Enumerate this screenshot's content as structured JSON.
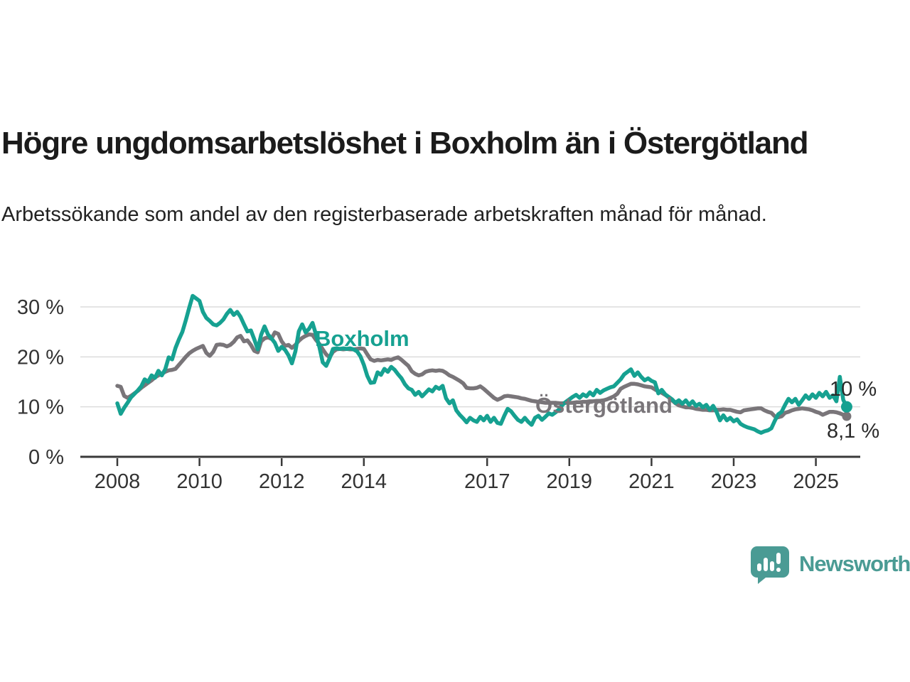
{
  "header": {
    "title": "Högre ungdomsarbetslöshet i Boxholm än i Östergötland",
    "subtitle": "Arbetssökande som andel av den registerbaserade arbetskraften månad för månad."
  },
  "chart_data": {
    "type": "line",
    "unit": "%",
    "x_start": "2008-01",
    "x_end": "2025-10",
    "x_ticks": [
      2008,
      2010,
      2012,
      2014,
      2017,
      2019,
      2021,
      2023,
      2025
    ],
    "y_axis": {
      "min": 0,
      "max": 33,
      "ticks": [
        {
          "value": 0,
          "label": "0 %"
        },
        {
          "value": 10,
          "label": "10 %"
        },
        {
          "value": 20,
          "label": "20 %"
        },
        {
          "value": 30,
          "label": "30 %"
        }
      ]
    },
    "grid": "horizontal",
    "legend_position": "inline-labels",
    "series": [
      {
        "name": "Boxholm",
        "color": "#16a191",
        "end_label": "10 %",
        "last_value": 10.0,
        "values": [
          10.7,
          8.6,
          9.8,
          10.8,
          11.9,
          12.6,
          13.3,
          14.1,
          15.5,
          15.0,
          16.3,
          15.8,
          17.2,
          16.3,
          17.5,
          19.9,
          19.5,
          21.8,
          23.5,
          25.0,
          27.3,
          29.8,
          32.2,
          31.7,
          31.2,
          29.0,
          27.8,
          27.2,
          26.5,
          26.3,
          26.8,
          27.5,
          28.6,
          29.4,
          28.4,
          29.0,
          28.0,
          26.5,
          25.1,
          25.3,
          23.5,
          21.5,
          24.4,
          26.1,
          24.5,
          23.7,
          22.8,
          21.2,
          22.0,
          21.4,
          20.3,
          18.7,
          21.1,
          25.1,
          26.5,
          24.9,
          25.6,
          26.8,
          24.5,
          22.0,
          18.9,
          18.2,
          19.7,
          21.6,
          21.7,
          21.6,
          21.7,
          21.6,
          21.7,
          21.5,
          21.1,
          20.1,
          18.4,
          16.2,
          14.8,
          14.9,
          16.9,
          16.4,
          17.6,
          17.0,
          18.0,
          17.4,
          16.5,
          15.7,
          14.5,
          13.7,
          13.4,
          12.4,
          13.0,
          12.1,
          12.8,
          13.5,
          13.1,
          14.0,
          13.6,
          14.2,
          11.7,
          10.7,
          11.3,
          9.3,
          8.4,
          7.7,
          6.9,
          7.8,
          7.3,
          7.0,
          8.0,
          7.3,
          8.2,
          7.0,
          7.8,
          6.8,
          6.6,
          8.2,
          9.6,
          9.1,
          8.2,
          7.4,
          7.0,
          7.8,
          7.0,
          6.4,
          7.8,
          8.2,
          7.4,
          8.0,
          8.7,
          8.4,
          8.9,
          9.5,
          10.4,
          11.0,
          11.5,
          12.0,
          12.4,
          11.8,
          12.5,
          12.1,
          12.9,
          12.3,
          13.4,
          12.8,
          13.3,
          13.6,
          13.9,
          14.1,
          14.8,
          15.5,
          16.5,
          17.0,
          17.5,
          16.2,
          16.9,
          16.0,
          15.3,
          15.7,
          15.2,
          14.9,
          12.7,
          13.4,
          12.5,
          12.0,
          11.5,
          10.8,
          11.3,
          10.6,
          11.3,
          10.4,
          11.1,
          10.2,
          10.6,
          9.9,
          10.4,
          9.4,
          10.2,
          9.0,
          7.3,
          8.3,
          7.3,
          7.8,
          7.1,
          7.5,
          6.6,
          6.2,
          5.9,
          5.7,
          5.5,
          5.1,
          4.8,
          5.1,
          5.3,
          5.7,
          7.2,
          8.5,
          9.0,
          10.4,
          11.6,
          10.9,
          11.6,
          10.4,
          11.3,
          12.3,
          11.6,
          12.5,
          11.8,
          12.8,
          12.1,
          13.0,
          11.8,
          12.3,
          11.1,
          16.0,
          11.4,
          10.0
        ]
      },
      {
        "name": "Östergötland",
        "color": "#797579",
        "end_label": "8,1 %",
        "last_value": 8.1,
        "values": [
          14.2,
          14.0,
          12.2,
          11.8,
          12.2,
          12.7,
          13.2,
          13.8,
          14.3,
          14.8,
          15.3,
          15.9,
          16.3,
          16.6,
          17.0,
          17.3,
          17.4,
          17.6,
          18.4,
          19.2,
          20.0,
          20.7,
          21.2,
          21.6,
          21.9,
          22.2,
          20.8,
          20.2,
          21.0,
          22.4,
          22.5,
          22.4,
          22.1,
          22.4,
          23.0,
          23.9,
          24.2,
          23.1,
          23.3,
          22.4,
          21.2,
          20.9,
          23.1,
          23.7,
          23.9,
          23.6,
          24.9,
          24.6,
          23.1,
          22.2,
          22.4,
          21.8,
          22.4,
          23.2,
          23.8,
          24.2,
          24.5,
          24.4,
          23.4,
          22.6,
          21.5,
          20.5,
          19.9,
          21.0,
          21.5,
          21.6,
          21.5,
          21.6,
          21.5,
          21.5,
          21.6,
          21.7,
          21.6,
          20.5,
          19.5,
          19.2,
          19.4,
          19.3,
          19.4,
          19.5,
          19.4,
          19.7,
          19.9,
          19.4,
          18.8,
          18.2,
          17.1,
          16.6,
          16.3,
          16.5,
          17.0,
          17.2,
          17.3,
          17.2,
          17.3,
          17.2,
          16.8,
          16.3,
          16.0,
          15.6,
          15.2,
          14.7,
          13.8,
          13.7,
          13.7,
          13.8,
          14.1,
          13.6,
          13.0,
          12.4,
          11.8,
          11.4,
          11.7,
          12.1,
          12.2,
          12.1,
          12.0,
          11.9,
          11.7,
          11.6,
          11.4,
          11.2,
          11.1,
          11.0,
          10.9,
          10.8,
          10.8,
          10.8,
          10.8,
          10.7,
          10.7,
          10.8,
          10.8,
          10.8,
          10.9,
          10.9,
          11.0,
          11.0,
          11.1,
          11.1,
          11.2,
          11.2,
          11.3,
          11.5,
          11.8,
          12.1,
          12.6,
          13.6,
          14.0,
          14.3,
          14.6,
          14.6,
          14.5,
          14.3,
          14.1,
          14.0,
          13.9,
          13.5,
          13.1,
          12.8,
          12.4,
          11.9,
          11.3,
          10.7,
          10.3,
          10.1,
          9.9,
          9.9,
          9.8,
          9.6,
          9.5,
          9.4,
          9.4,
          9.3,
          9.3,
          9.4,
          9.4,
          9.5,
          9.4,
          9.4,
          9.2,
          9.0,
          8.9,
          9.3,
          9.4,
          9.5,
          9.6,
          9.7,
          9.7,
          9.3,
          9.0,
          8.8,
          8.1,
          7.9,
          8.1,
          8.8,
          9.0,
          9.3,
          9.5,
          9.6,
          9.7,
          9.6,
          9.5,
          9.3,
          9.0,
          8.8,
          8.4,
          8.7,
          9.0,
          9.0,
          8.9,
          8.7,
          8.4,
          8.1
        ]
      }
    ]
  },
  "footer": {
    "brand": "Newsworthy",
    "brand_color": "#4a9b94"
  },
  "colors": {
    "boxholm_line": "#16a191",
    "ostergotland_line": "#797579",
    "axis": "#3a3a3a",
    "gridline": "#dcdcdc",
    "title_text": "#1b1b1b"
  }
}
